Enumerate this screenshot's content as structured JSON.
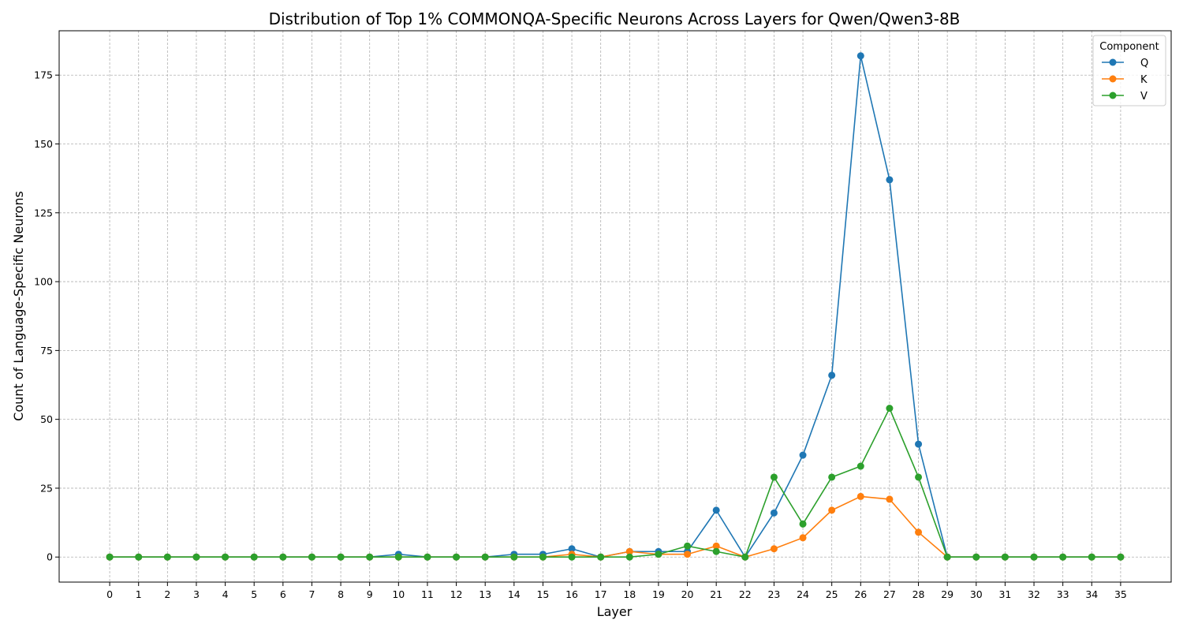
{
  "chart_data": {
    "type": "line",
    "title": "Distribution of Top 1% COMMONQA-Specific Neurons Across Layers for Qwen/Qwen3-8B",
    "xlabel": "Layer",
    "ylabel": "Count of Language-Specific Neurons",
    "x": [
      0,
      1,
      2,
      3,
      4,
      5,
      6,
      7,
      8,
      9,
      10,
      11,
      12,
      13,
      14,
      15,
      16,
      17,
      18,
      19,
      20,
      21,
      22,
      23,
      24,
      25,
      26,
      27,
      28,
      29,
      30,
      31,
      32,
      33,
      34,
      35
    ],
    "xticks": [
      "0",
      "1",
      "2",
      "3",
      "4",
      "5",
      "6",
      "7",
      "8",
      "9",
      "10",
      "11",
      "12",
      "13",
      "14",
      "15",
      "16",
      "17",
      "18",
      "19",
      "20",
      "21",
      "22",
      "23",
      "24",
      "25",
      "26",
      "27",
      "28",
      "29",
      "30",
      "31",
      "32",
      "33",
      "34",
      "35"
    ],
    "xlim": [
      -1.75,
      36.75
    ],
    "ylim": [
      -9.1,
      191.1
    ],
    "yticks": [
      0,
      25,
      50,
      75,
      100,
      125,
      150,
      175
    ],
    "ytick_labels": [
      "0",
      "25",
      "50",
      "75",
      "100",
      "125",
      "150",
      "175"
    ],
    "grid": true,
    "legend_title": "Component",
    "legend_position": "top-right",
    "series": [
      {
        "name": "Q",
        "color": "#1f77b4",
        "values": [
          0,
          0,
          0,
          0,
          0,
          0,
          0,
          0,
          0,
          0,
          1,
          0,
          0,
          0,
          1,
          1,
          3,
          0,
          2,
          2,
          2,
          17,
          0,
          16,
          37,
          66,
          182,
          137,
          41,
          0,
          0,
          0,
          0,
          0,
          0,
          0
        ]
      },
      {
        "name": "K",
        "color": "#ff7f0e",
        "values": [
          0,
          0,
          0,
          0,
          0,
          0,
          0,
          0,
          0,
          0,
          0,
          0,
          0,
          0,
          0,
          0,
          1,
          0,
          2,
          1,
          1,
          4,
          0,
          3,
          7,
          17,
          22,
          21,
          9,
          0,
          0,
          0,
          0,
          0,
          0,
          0
        ]
      },
      {
        "name": "V",
        "color": "#2ca02c",
        "values": [
          0,
          0,
          0,
          0,
          0,
          0,
          0,
          0,
          0,
          0,
          0,
          0,
          0,
          0,
          0,
          0,
          0,
          0,
          0,
          1,
          4,
          2,
          0,
          29,
          12,
          29,
          33,
          54,
          29,
          0,
          0,
          0,
          0,
          0,
          0,
          0
        ]
      }
    ]
  }
}
